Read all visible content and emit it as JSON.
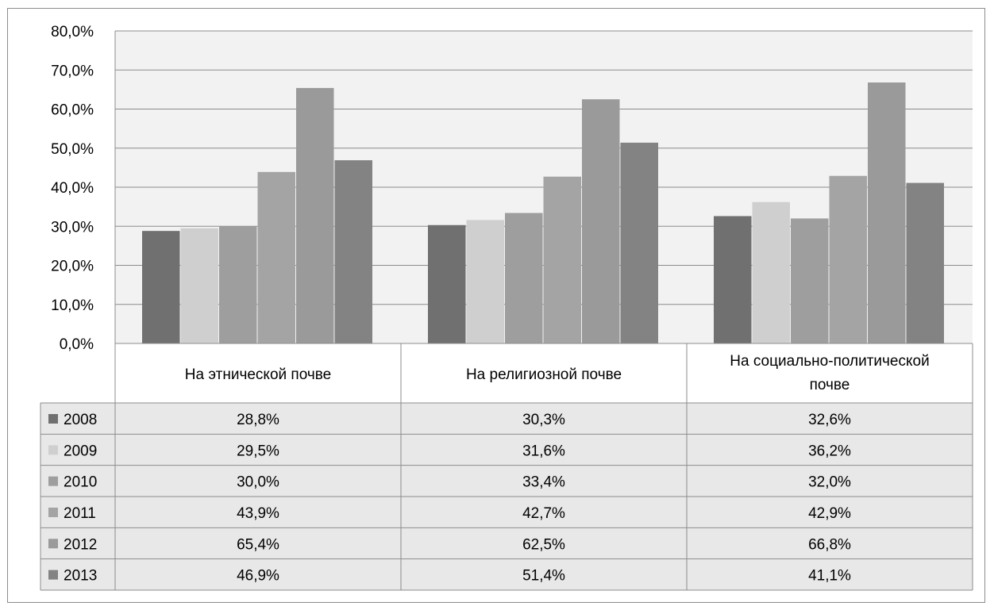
{
  "chart_data": {
    "type": "bar",
    "title": "",
    "xlabel": "",
    "ylabel": "",
    "ylim": [
      0,
      80
    ],
    "y_ticks": [
      "0,0%",
      "10,0%",
      "20,0%",
      "30,0%",
      "40,0%",
      "50,0%",
      "60,0%",
      "70,0%",
      "80,0%"
    ],
    "grid": true,
    "legend": "data-table",
    "categories": [
      [
        "На этнической почве"
      ],
      [
        "На религиозной почве"
      ],
      [
        "На социально-политической",
        "почве"
      ]
    ],
    "series": [
      {
        "name": "2008",
        "color": "#707070",
        "values": [
          28.8,
          30.3,
          32.6
        ],
        "labels": [
          "28,8%",
          "30,3%",
          "32,6%"
        ]
      },
      {
        "name": "2009",
        "color": "#cfcfcf",
        "values": [
          29.5,
          31.6,
          36.2
        ],
        "labels": [
          "29,5%",
          "31,6%",
          "36,2%"
        ]
      },
      {
        "name": "2010",
        "color": "#9e9e9e",
        "values": [
          30.0,
          33.4,
          32.0
        ],
        "labels": [
          "30,0%",
          "33,4%",
          "32,0%"
        ]
      },
      {
        "name": "2011",
        "color": "#a4a4a4",
        "values": [
          43.9,
          42.7,
          42.9
        ],
        "labels": [
          "43,9%",
          "42,7%",
          "42,9%"
        ]
      },
      {
        "name": "2012",
        "color": "#9a9a9a",
        "values": [
          65.4,
          62.5,
          66.8
        ],
        "labels": [
          "65,4%",
          "62,5%",
          "66,8%"
        ]
      },
      {
        "name": "2013",
        "color": "#838383",
        "values": [
          46.9,
          51.4,
          41.1
        ],
        "labels": [
          "46,9%",
          "51,4%",
          "41,1%"
        ]
      }
    ]
  }
}
